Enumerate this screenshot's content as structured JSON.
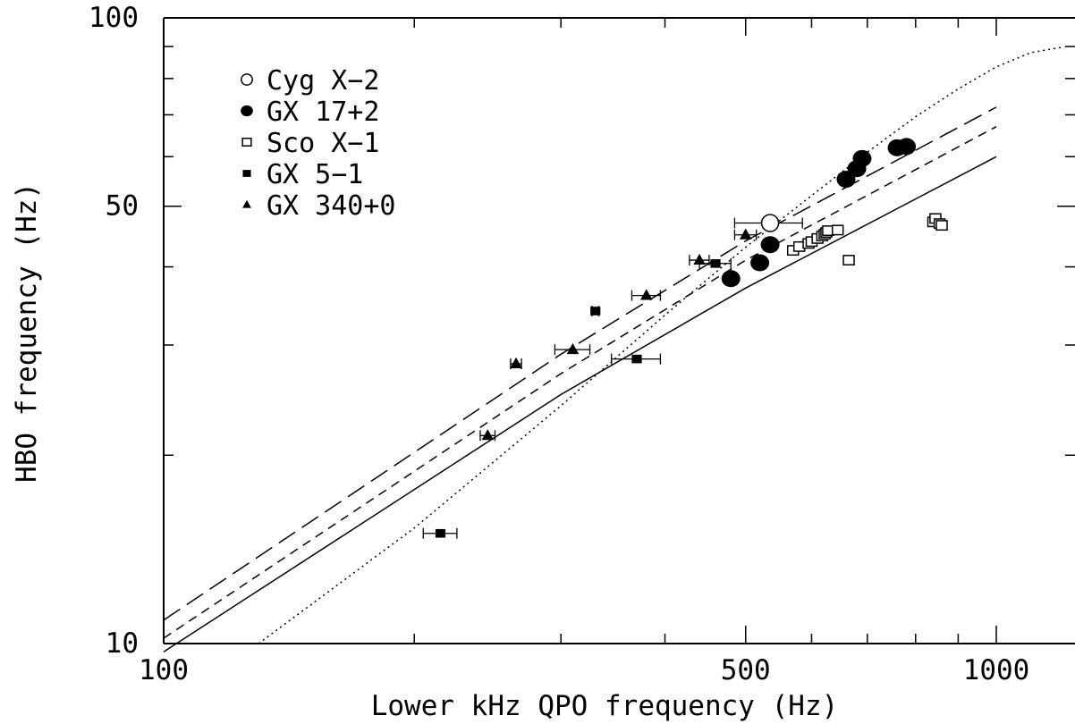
{
  "chart_data": {
    "type": "scatter",
    "title": "",
    "xlabel": "Lower kHz QPO frequency (Hz)",
    "ylabel": "HBO frequency (Hz)",
    "xscale": "log",
    "yscale": "log",
    "xlim": [
      100,
      1202
    ],
    "ylim": [
      10,
      100
    ],
    "x_ticklabels": [
      {
        "value": 100,
        "label": "100"
      },
      {
        "value": 500,
        "label": "500"
      },
      {
        "value": 1000,
        "label": "1000"
      }
    ],
    "y_ticklabels": [
      {
        "value": 10,
        "label": "10"
      },
      {
        "value": 50,
        "label": "50"
      },
      {
        "value": 100,
        "label": "100"
      }
    ],
    "legend_position": "top-left",
    "series": [
      {
        "name": "Cyg X−2",
        "marker": "open-circle",
        "points": [
          {
            "x": 535,
            "y": 47.0,
            "xerr": 50
          }
        ]
      },
      {
        "name": "GX 17+2",
        "marker": "filled-circle",
        "points": [
          {
            "x": 480,
            "y": 38.3
          },
          {
            "x": 520,
            "y": 40.6
          },
          {
            "x": 535,
            "y": 43.4
          },
          {
            "x": 660,
            "y": 55.2
          },
          {
            "x": 680,
            "y": 57.4
          },
          {
            "x": 690,
            "y": 59.6
          },
          {
            "x": 760,
            "y": 62.0
          },
          {
            "x": 780,
            "y": 62.3
          }
        ]
      },
      {
        "name": "Sco X−1",
        "marker": "open-square",
        "points": [
          {
            "x": 570,
            "y": 42.5
          },
          {
            "x": 580,
            "y": 43.1
          },
          {
            "x": 595,
            "y": 43.6
          },
          {
            "x": 600,
            "y": 43.9
          },
          {
            "x": 610,
            "y": 44.4
          },
          {
            "x": 618,
            "y": 44.8
          },
          {
            "x": 622,
            "y": 45.1
          },
          {
            "x": 625,
            "y": 45.4
          },
          {
            "x": 628,
            "y": 45.7
          },
          {
            "x": 645,
            "y": 45.8
          },
          {
            "x": 665,
            "y": 41.0
          },
          {
            "x": 840,
            "y": 47.2
          },
          {
            "x": 845,
            "y": 47.8
          },
          {
            "x": 855,
            "y": 46.9
          },
          {
            "x": 860,
            "y": 46.6
          }
        ]
      },
      {
        "name": "GX 5−1",
        "marker": "filled-square",
        "points": [
          {
            "x": 215,
            "y": 15.0,
            "xerr": 10
          },
          {
            "x": 330,
            "y": 34.0,
            "xerr": 3
          },
          {
            "x": 370,
            "y": 28.5,
            "xerr": 25
          },
          {
            "x": 460,
            "y": 40.5,
            "xerr": 20
          }
        ]
      },
      {
        "name": "GX 340+0",
        "marker": "filled-triangle",
        "points": [
          {
            "x": 245,
            "y": 21.5,
            "xerr": 5
          },
          {
            "x": 265,
            "y": 28.0,
            "xerr": 4
          },
          {
            "x": 310,
            "y": 29.5,
            "xerr": 15
          },
          {
            "x": 380,
            "y": 36.0,
            "xerr": 15
          },
          {
            "x": 440,
            "y": 41.0,
            "xerr": 12
          },
          {
            "x": 500,
            "y": 45.0,
            "xerr": 15
          }
        ]
      }
    ],
    "model_curves": [
      {
        "style": "solid",
        "points": [
          [
            100,
            9.7
          ],
          [
            300,
            25.0
          ],
          [
            500,
            37.0
          ],
          [
            1000,
            60.0
          ]
        ]
      },
      {
        "style": "short-dashed",
        "points": [
          [
            100,
            10.2
          ],
          [
            300,
            27.0
          ],
          [
            500,
            41.0
          ],
          [
            1000,
            67.0
          ]
        ]
      },
      {
        "style": "long-dashed",
        "points": [
          [
            100,
            10.9
          ],
          [
            300,
            29.0
          ],
          [
            500,
            44.0
          ],
          [
            1000,
            72.0
          ]
        ]
      },
      {
        "style": "dotted",
        "points": [
          [
            130,
            10.0
          ],
          [
            200,
            15.3
          ],
          [
            300,
            24.0
          ],
          [
            400,
            33.5
          ],
          [
            500,
            43.0
          ],
          [
            600,
            52.0
          ],
          [
            700,
            61.0
          ],
          [
            800,
            69.5
          ],
          [
            900,
            77.0
          ],
          [
            1000,
            83.5
          ],
          [
            1100,
            88.0
          ],
          [
            1202,
            89.8
          ]
        ]
      }
    ]
  }
}
